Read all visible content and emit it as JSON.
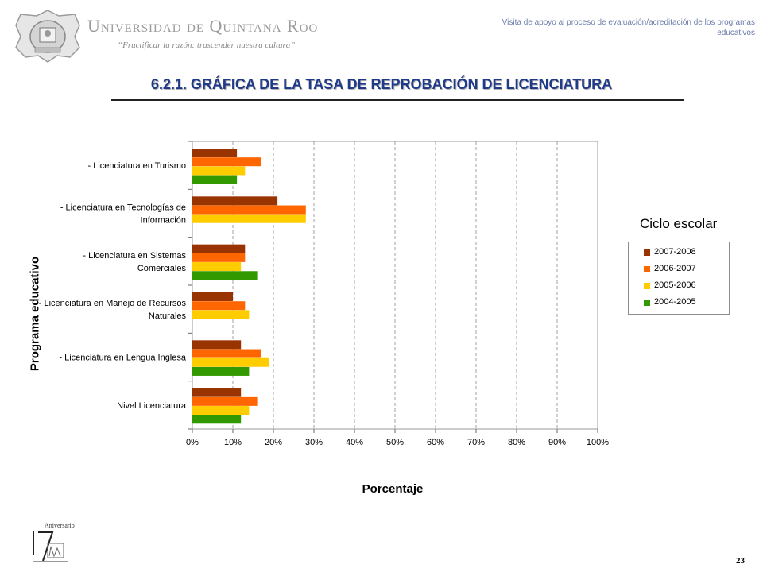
{
  "header": {
    "university_name": "Universidad de Quintana Roo",
    "motto": "“Fructificar la razón: trascender nuestra cultura”",
    "note": "Visita de apoyo al proceso de evaluación/acreditación de los programas educativos"
  },
  "page_title": "6.2.1. GRÁFICA DE LA TASA DE REPROBACIÓN DE LICENCIATURA",
  "footer": {
    "logo_text": "Aniversario",
    "page_number": "23"
  },
  "colors": {
    "2007-2008": "#993300",
    "2006-2007": "#ff6600",
    "2005-2006": "#ffcc00",
    "2004-2005": "#339900"
  },
  "chart_data": {
    "type": "bar",
    "orientation": "horizontal",
    "categories": [
      "- Licenciatura en Turismo",
      "- Licenciatura en Tecnologías de Información",
      "- Licenciatura en Sistemas Comerciales",
      "- Licenciatura en Manejo de Recursos Naturales",
      "- Licenciatura en Lengua Inglesa",
      "Nivel Licenciatura"
    ],
    "series": [
      {
        "name": "2007-2008",
        "values": [
          11,
          21,
          13,
          10,
          12,
          12
        ]
      },
      {
        "name": "2006-2007",
        "values": [
          17,
          28,
          13,
          13,
          17,
          16
        ]
      },
      {
        "name": "2005-2006",
        "values": [
          13,
          28,
          12,
          14,
          19,
          14
        ]
      },
      {
        "name": "2004-2005",
        "values": [
          11,
          0,
          16,
          0,
          14,
          12
        ]
      }
    ],
    "xlim": [
      0,
      100
    ],
    "xticks": [
      "0%",
      "10%",
      "20%",
      "30%",
      "40%",
      "50%",
      "60%",
      "70%",
      "80%",
      "90%",
      "100%"
    ],
    "xlabel": "Porcentaje",
    "ylabel": "Programa educativo",
    "legend_title": "Ciclo escolar",
    "legend_order": [
      "2007-2008",
      "2006-2007",
      "2005-2006",
      "2004-2005"
    ],
    "legend_position": "right",
    "grid": "vertical dashed"
  }
}
